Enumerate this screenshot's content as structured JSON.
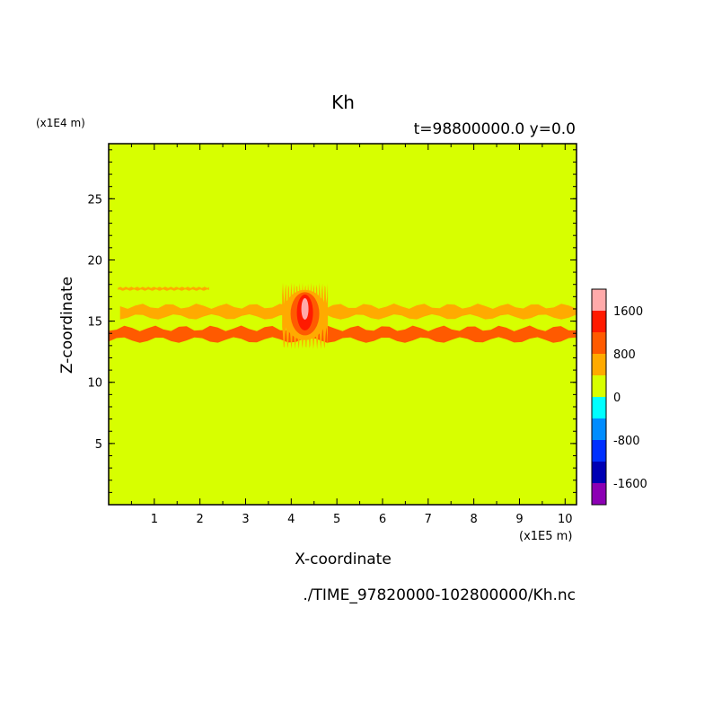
{
  "chart_data": {
    "type": "heatmap",
    "title": "Kh",
    "subtitle": "t=98800000.0 y=0.0",
    "xlabel": "X-coordinate",
    "ylabel": "Z-coordinate",
    "x_unit": "(x1E5 m)",
    "y_unit": "(x1E4 m)",
    "source_file": "./TIME_97820000-102800000/Kh.nc",
    "xlim": [
      0,
      10.25
    ],
    "ylim": [
      0,
      29.5
    ],
    "x_ticks": [
      "1",
      "2",
      "3",
      "4",
      "5",
      "6",
      "7",
      "8",
      "9",
      "10"
    ],
    "y_ticks": [
      "5",
      "10",
      "15",
      "20",
      "25"
    ],
    "background_level": "0 to 400",
    "colorbar": {
      "labels": [
        "1600",
        "800",
        "0",
        "-800",
        "-1600"
      ],
      "levels": [
        {
          "min": 1600,
          "max": 2000,
          "color": "#ffaaaa"
        },
        {
          "min": 1200,
          "max": 1600,
          "color": "#ff1a00"
        },
        {
          "min": 800,
          "max": 1200,
          "color": "#ff5a00"
        },
        {
          "min": 400,
          "max": 800,
          "color": "#ffaa00"
        },
        {
          "min": 0,
          "max": 400,
          "color": "#d7ff00"
        },
        {
          "min": -400,
          "max": 0,
          "color": "#00ffff"
        },
        {
          "min": -800,
          "max": -400,
          "color": "#008cff"
        },
        {
          "min": -1200,
          "max": -800,
          "color": "#0030ff"
        },
        {
          "min": -1600,
          "max": -1200,
          "color": "#0000b4"
        },
        {
          "min": -2000,
          "max": -1600,
          "color": "#8c00b4"
        }
      ]
    },
    "features": [
      {
        "desc": "upper band",
        "x": [
          0.25,
          10.25
        ],
        "z": [
          15.2,
          16.4
        ],
        "level": "400 to 800"
      },
      {
        "desc": "lower band",
        "x": [
          0,
          10.25
        ],
        "z": [
          13.3,
          14.6
        ],
        "level": "800 to 1200"
      },
      {
        "desc": "thin layer",
        "x": [
          0.2,
          2.2
        ],
        "z": [
          17.5,
          17.8
        ],
        "level": "400 to 800"
      },
      {
        "desc": "plume",
        "x": [
          3.8,
          4.8
        ],
        "z": [
          13,
          18
        ],
        "level": "1200 to 2000"
      }
    ]
  }
}
